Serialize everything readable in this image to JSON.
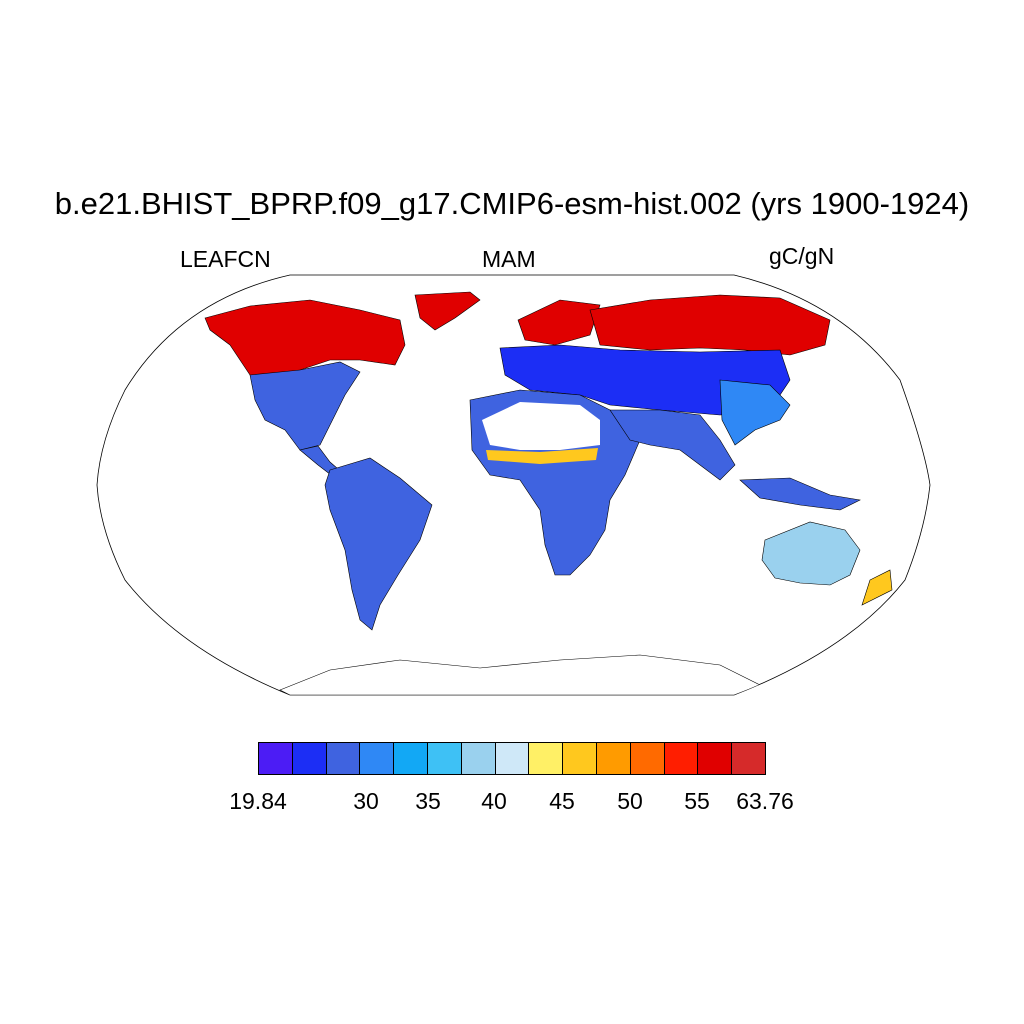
{
  "title": "b.e21.BHIST_BPRP.f09_g17.CMIP6-esm-hist.002 (yrs 1900-1924)",
  "variable": "LEAFCN",
  "season": "MAM",
  "units": "gC/gN",
  "projection": "Robinson",
  "colorbar": {
    "colors": [
      "#4c1cf5",
      "#1c2ef5",
      "#3f63e0",
      "#2f88f5",
      "#12a8f5",
      "#3ec1f5",
      "#9ad1ee",
      "#cfe8f8",
      "#fff066",
      "#ffc81e",
      "#ff9b00",
      "#ff6a00",
      "#ff1e00",
      "#e00000",
      "#d62a2a"
    ],
    "labels": [
      "19.84",
      "30",
      "35",
      "40",
      "45",
      "50",
      "55",
      "63.76"
    ],
    "label_values": [
      19.84,
      30,
      35,
      40,
      45,
      50,
      55,
      63.76
    ]
  },
  "regions": [
    {
      "name": "boreal-north-america",
      "color": "#e00000"
    },
    {
      "name": "conterminous-us",
      "color": "#3f63e0"
    },
    {
      "name": "south-america",
      "color": "#3f63e0"
    },
    {
      "name": "greenland-coast",
      "color": "#e00000"
    },
    {
      "name": "europe-north",
      "color": "#e00000"
    },
    {
      "name": "mid-latitude-eurasia",
      "color": "#1c2ef5"
    },
    {
      "name": "siberia",
      "color": "#e00000"
    },
    {
      "name": "africa",
      "color": "#3f63e0"
    },
    {
      "name": "sahara-desert",
      "color": "#ffffff"
    },
    {
      "name": "sahel-band",
      "color": "#ffc81e"
    },
    {
      "name": "south-asia",
      "color": "#3f63e0"
    },
    {
      "name": "east-asia",
      "color": "#2f88f5"
    },
    {
      "name": "australia",
      "color": "#9ad1ee"
    },
    {
      "name": "maritime-continent",
      "color": "#3f63e0"
    },
    {
      "name": "antarctica",
      "color": "#ffffff"
    }
  ]
}
